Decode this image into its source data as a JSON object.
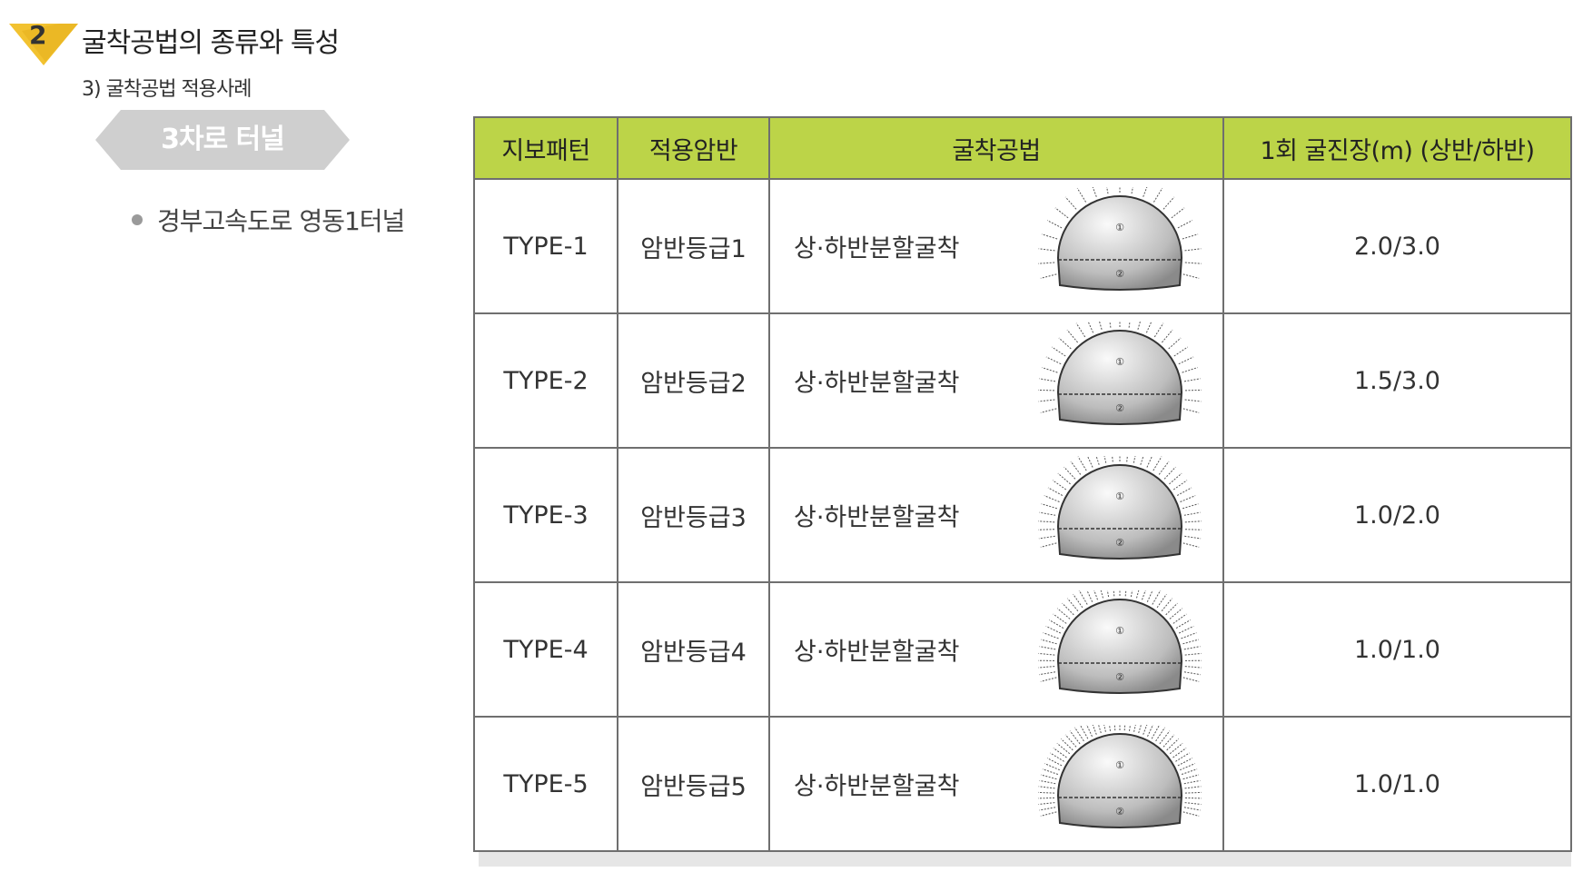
{
  "header": {
    "section_number": "2",
    "section_title": "굴착공법의 종류와 특성",
    "sub_title": "3) 굴착공법 적용사례"
  },
  "category_tag": {
    "label": "3차로 터널"
  },
  "bullet": {
    "text": "경부고속도로 영동1터널"
  },
  "colors": {
    "header_bg": "#bcd448",
    "badge": "#f2c230",
    "tag": "#cfcfcf"
  },
  "table": {
    "columns": [
      "지보패턴",
      "적용암반",
      "굴착공법",
      "1회 굴진장(m) (상반/하반)"
    ],
    "rows": [
      {
        "pattern": "TYPE-1",
        "rock": "암반등급1",
        "method": "상·하반분할굴착",
        "advance": "2.0/3.0",
        "diagram_icon": "tunnel-section-icon"
      },
      {
        "pattern": "TYPE-2",
        "rock": "암반등급2",
        "method": "상·하반분할굴착",
        "advance": "1.5/3.0",
        "diagram_icon": "tunnel-section-icon"
      },
      {
        "pattern": "TYPE-3",
        "rock": "암반등급3",
        "method": "상·하반분할굴착",
        "advance": "1.0/2.0",
        "diagram_icon": "tunnel-section-icon"
      },
      {
        "pattern": "TYPE-4",
        "rock": "암반등급4",
        "method": "상·하반분할굴착",
        "advance": "1.0/1.0",
        "diagram_icon": "tunnel-section-icon"
      },
      {
        "pattern": "TYPE-5",
        "rock": "암반등급5",
        "method": "상·하반분할굴착",
        "advance": "1.0/1.0",
        "diagram_icon": "tunnel-section-icon"
      }
    ],
    "diagram_labels": {
      "upper": "①",
      "lower": "②"
    }
  }
}
